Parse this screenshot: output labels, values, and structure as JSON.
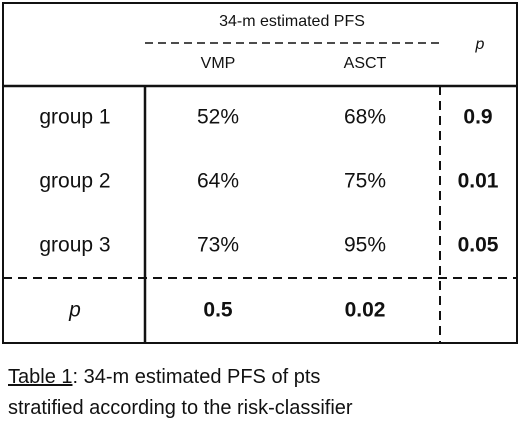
{
  "table": {
    "header": {
      "group_title": "34-m estimated PFS",
      "columns": [
        "VMP",
        "ASCT"
      ],
      "p_header": "p"
    },
    "rows": [
      {
        "label": "group 1",
        "cells": [
          "52%",
          "68%"
        ],
        "p": "0.9"
      },
      {
        "label": "group 2",
        "cells": [
          "64%",
          "75%"
        ],
        "p": "0.01"
      },
      {
        "label": "group 3",
        "cells": [
          "73%",
          "95%"
        ],
        "p": "0.05"
      }
    ],
    "p_row": {
      "label": "p",
      "cells": [
        "0.5",
        "0.02"
      ]
    }
  },
  "caption": {
    "label": "Table 1",
    "lines": [
      ": 34-m estimated PFS of pts",
      "stratified according to the risk-classifier"
    ]
  }
}
